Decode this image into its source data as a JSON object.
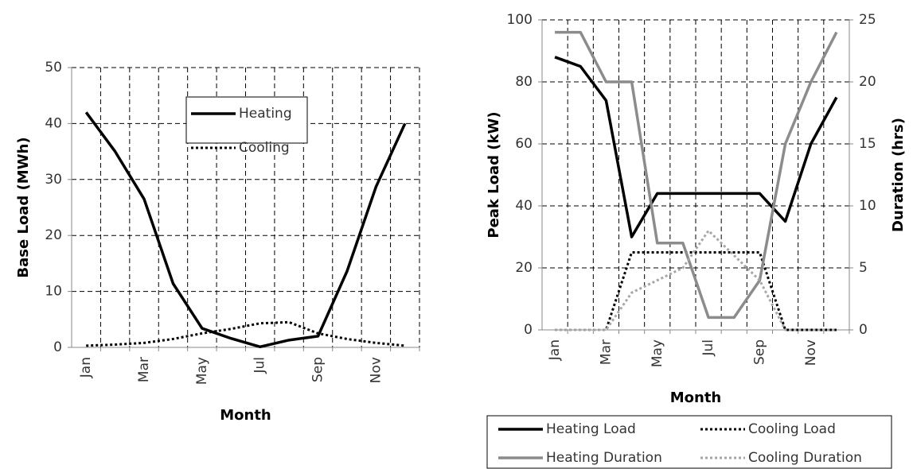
{
  "chart_data": [
    {
      "type": "line",
      "x_label": "Month",
      "y_label": "Base Load (MWh)",
      "categories": [
        "Jan",
        null,
        "Mar",
        null,
        "May",
        null,
        "Jul",
        null,
        "Sep",
        null,
        "Nov",
        null
      ],
      "ylim": [
        0,
        50
      ],
      "yticks": [
        0,
        10,
        20,
        30,
        40,
        50
      ],
      "grid": true,
      "legend": "inside",
      "series": [
        {
          "name": "Heating",
          "color": "#000000",
          "style": "solid",
          "values": [
            42,
            35,
            26.5,
            11.4,
            3.4,
            1.6,
            0.1,
            1.3,
            2,
            13.6,
            28.7,
            40
          ]
        },
        {
          "name": "Cooling",
          "color": "#000000",
          "style": "dotted",
          "values": [
            0.3,
            0.5,
            0.8,
            1.5,
            2.5,
            3.3,
            4.3,
            4.5,
            2.5,
            1.5,
            0.8,
            0.3
          ]
        }
      ]
    },
    {
      "type": "line",
      "x_label": "Month",
      "y_label": "Peak Load (kW)",
      "y2_label": "Duration (hrs)",
      "categories": [
        "Jan",
        null,
        "Mar",
        null,
        "May",
        null,
        "Jul",
        null,
        "Sep",
        null,
        "Nov",
        null
      ],
      "ylim": [
        0,
        100
      ],
      "yticks": [
        0,
        20,
        40,
        60,
        80,
        100
      ],
      "y2lim": [
        0,
        25
      ],
      "y2ticks": [
        0,
        5,
        10,
        15,
        20,
        25
      ],
      "y2color": "#8c8c8c",
      "grid": true,
      "legend": "bottom",
      "series": [
        {
          "name": "Heating Load",
          "color": "#000000",
          "style": "solid",
          "values": [
            88,
            85,
            74,
            30,
            44,
            44,
            44,
            44,
            44,
            35,
            60,
            75
          ]
        },
        {
          "name": "Cooling Load",
          "color": "#000000",
          "style": "dotted",
          "values": [
            0,
            0,
            0,
            25,
            25,
            25,
            25,
            25,
            25,
            0,
            0,
            0
          ]
        },
        {
          "name": "Heating Duration",
          "color": "#8c8c8c",
          "style": "solid",
          "axis": "y2",
          "values": [
            24,
            24,
            20,
            20,
            7,
            7,
            1,
            1,
            4,
            15,
            20,
            24
          ]
        },
        {
          "name": "Cooling Duration",
          "color": "#a6a6a6",
          "style": "dotted",
          "axis": "y2",
          "values": [
            0,
            0,
            0,
            3,
            4,
            5,
            8,
            6,
            4,
            0,
            0,
            0
          ]
        }
      ]
    }
  ]
}
